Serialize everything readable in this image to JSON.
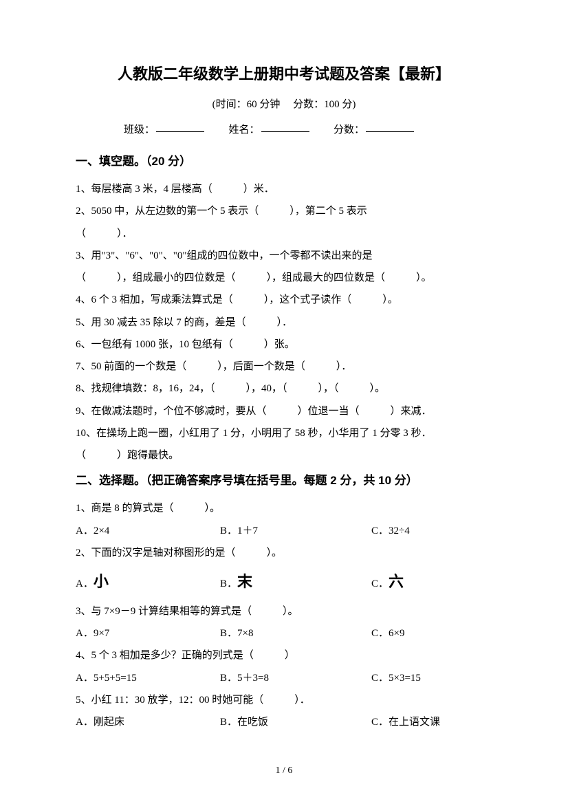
{
  "title": "人教版二年级数学上册期中考试题及答案【最新】",
  "subtitle": "(时间：60 分钟　 分数：100 分)",
  "info": {
    "class_label": "班级：",
    "name_label": "姓名：",
    "score_label": "分数："
  },
  "section1": {
    "header": "一、填空题。（20 分）",
    "q1": "1、每层楼高 3 米，4 层楼高（　　　）米．",
    "q2a": "2、5050 中，从左边数的第一个 5 表示（　　　），第二个 5 表示",
    "q2b": "（　　　）．",
    "q3a": "3、用\"3\"、\"6\"、\"0\"、\"0\"组成的四位数中，一个零都不读出来的是",
    "q3b": "（　　　），组成最小的四位数是（　　　），组成最大的四位数是（　　　）。",
    "q4": "4、6 个 3 相加，写成乘法算式是（　　　），这个式子读作（　　　）。",
    "q5": "5、用 30 减去 35 除以 7 的商，差是（　　　）．",
    "q6": "6、一包纸有 1000 张，10 包纸有（　　　）张。",
    "q7": "7、50 前面的一个数是（　　　），后面一个数是（　　　）．",
    "q8": "8、找规律填数：8，16，24，（　　　），40，（　　　），（　　　）。",
    "q9": "9、在做减法题时，个位不够减时，要从（　　　）位退一当（　　　）来减．",
    "q10a": "10、在操场上跑一圈，小红用了 1 分，小明用了 58 秒，小华用了 1 分零 3 秒．",
    "q10b": "（　　　）跑得最快。"
  },
  "section2": {
    "header": "二、选择题。（把正确答案序号填在括号里。每题 2 分，共 10 分）",
    "q1": "1、商是 8 的算式是（　　　）。",
    "q1_opts": {
      "a": "A．2×4",
      "b": "B．1＋7",
      "c": "C．32÷4"
    },
    "q2": "2、下面的汉字是轴对称图形的是（　　　）。",
    "q2_opts": {
      "a_prefix": "A．",
      "a_char": "小",
      "b_prefix": "B．",
      "b_char": "末",
      "c_prefix": "C．",
      "c_char": "六"
    },
    "q3": "3、与 7×9－9 计算结果相等的算式是（　　　）。",
    "q3_opts": {
      "a": "A．9×7",
      "b": "B．7×8",
      "c": "C．6×9"
    },
    "q4": "4、5 个 3 相加是多少？正确的列式是（　　　）",
    "q4_opts": {
      "a": "A．5+5+5=15",
      "b": "B．5＋3=8",
      "c": "C．5×3=15"
    },
    "q5": "5、小红 11：30 放学，12：00 时她可能（　　　）．",
    "q5_opts": {
      "a": "A．刚起床",
      "b": "B．在吃饭",
      "c": "C．在上语文课"
    }
  },
  "page_num": "1 / 6"
}
